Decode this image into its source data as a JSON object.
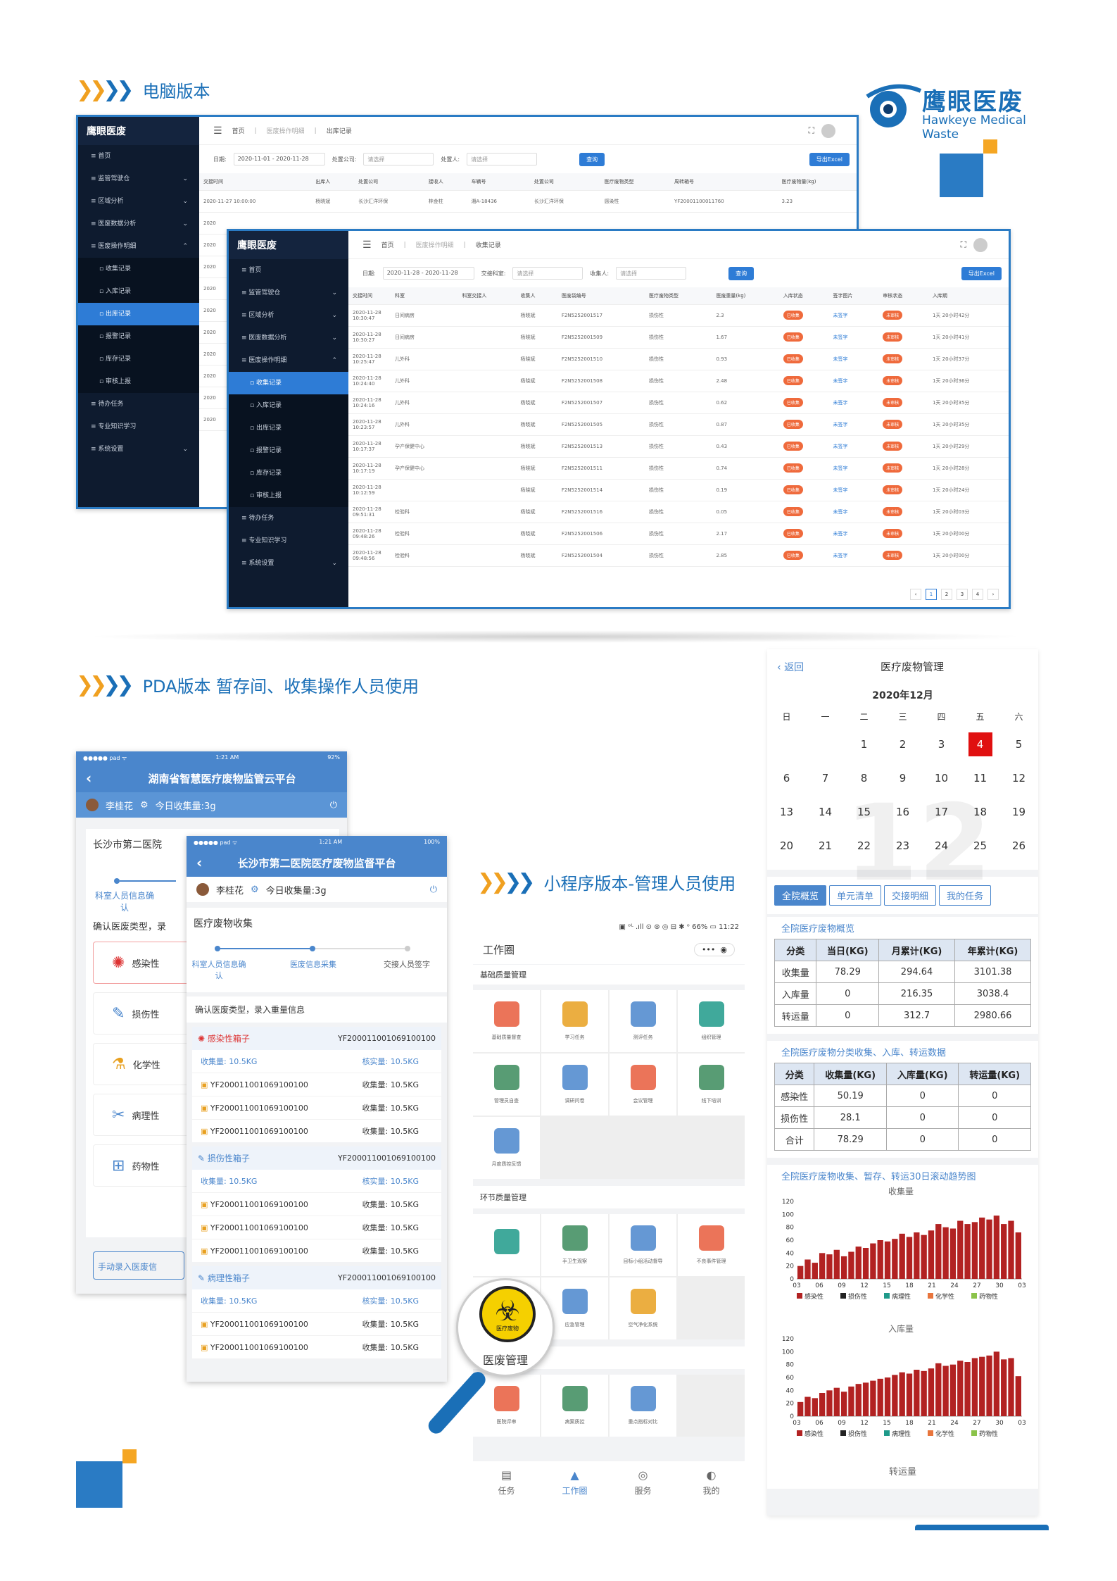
{
  "brand": {
    "name_cn": "鹰眼医废",
    "name_en": "Hawkeye Medical Waste"
  },
  "sections": {
    "pc": "电脑版本",
    "pda": "PDA版本 暂存间、收集操作人员使用",
    "mini": "小程序版本-管理人员使用"
  },
  "pc1": {
    "logo": "鹰眼医废",
    "logo_sub": "Hawkeye Medical Waste",
    "menu": [
      "首页",
      "监管驾驶仓",
      "区域分析",
      "医废数据分析",
      "医废操作明细",
      "收集记录",
      "入库记录",
      "出库记录",
      "报警记录",
      "库存记录",
      "审核上报",
      "待办任务",
      "专业知识学习",
      "系统设置"
    ],
    "crumbs": [
      "首页",
      "医废操作明细",
      "出库记录"
    ],
    "filters": {
      "date_label": "日期:",
      "date_value": "2020-11-01 - 2020-11-28",
      "company_label": "处置公司:",
      "company_ph": "请选择",
      "handler_label": "处置人:",
      "handler_ph": "请选择",
      "query": "查询",
      "export": "导出Excel"
    },
    "columns": [
      "交接时间",
      "出库人",
      "处置公司",
      "接收人",
      "车辆号",
      "处置公司",
      "医疗废物类型",
      "周转箱号",
      "医疗废物量(kg)"
    ],
    "row": [
      "2020-11-27 10:00:00",
      "杨晓斌",
      "长沙汇洋环保",
      "林金柱",
      "湘A-18436",
      "长沙汇洋环保",
      "感染性",
      "YF20001100011760",
      "3.23"
    ],
    "stub_rows": [
      "2020",
      "2020",
      "2020",
      "2020",
      "2020",
      "2020",
      "2020",
      "2020",
      "2020",
      "2020"
    ]
  },
  "pc2": {
    "logo": "鹰眼医废",
    "logo_sub": "Hawkeye Medical Waste",
    "menu": [
      "首页",
      "监管驾驶仓",
      "区域分析",
      "医废数据分析",
      "医废操作明细",
      "收集记录",
      "入库记录",
      "出库记录",
      "报警记录",
      "库存记录",
      "审核上报",
      "待办任务",
      "专业知识学习",
      "系统设置"
    ],
    "crumbs": [
      "首页",
      "医废操作明细",
      "收集记录"
    ],
    "filters": {
      "date_label": "日期:",
      "date_value": "2020-11-28 - 2020-11-28",
      "dept_label": "交接科室:",
      "dept_ph": "请选择",
      "collector_label": "收集人:",
      "collector_ph": "请选择",
      "query": "查询",
      "export": "导出Excel"
    },
    "columns": [
      "交接时间",
      "科室",
      "科室交接人",
      "收集人",
      "医废袋编号",
      "医疗废物类型",
      "医废重量(kg)",
      "入库状态",
      "签字图片",
      "审核状态",
      "入库期"
    ],
    "rows": [
      [
        "2020-11-28 10:30:47",
        "日间病房",
        "",
        "杨晓斌",
        "F2N5252001517",
        "损伤性",
        "2.3",
        "已收集",
        "未签字",
        "未审核",
        "1天 20小时42分"
      ],
      [
        "2020-11-28 10:30:27",
        "日间病房",
        "",
        "杨晓斌",
        "F2N5252001509",
        "损伤性",
        "1.67",
        "已收集",
        "未签字",
        "未审核",
        "1天 20小时41分"
      ],
      [
        "2020-11-28 10:25:47",
        "儿外科",
        "",
        "杨晓斌",
        "F2N5252001510",
        "损伤性",
        "0.93",
        "已收集",
        "未签字",
        "未审核",
        "1天 20小时37分"
      ],
      [
        "2020-11-28 10:24:40",
        "儿外科",
        "",
        "杨晓斌",
        "F2N5252001508",
        "损伤性",
        "2.48",
        "已收集",
        "未签字",
        "未审核",
        "1天 20小时36分"
      ],
      [
        "2020-11-28 10:24:16",
        "儿外科",
        "",
        "杨晓斌",
        "F2N5252001507",
        "损伤性",
        "0.62",
        "已收集",
        "未签字",
        "未审核",
        "1天 20小时35分"
      ],
      [
        "2020-11-28 10:23:57",
        "儿外科",
        "",
        "杨晓斌",
        "F2N5252001505",
        "损伤性",
        "0.87",
        "已收集",
        "未签字",
        "未审核",
        "1天 20小时35分"
      ],
      [
        "2020-11-28 10:17:37",
        "孕产保健中心",
        "",
        "杨晓斌",
        "F2N5252001513",
        "损伤性",
        "0.43",
        "已收集",
        "未签字",
        "未审核",
        "1天 20小时29分"
      ],
      [
        "2020-11-28 10:17:19",
        "孕产保健中心",
        "",
        "杨晓斌",
        "F2N5252001511",
        "损伤性",
        "0.74",
        "已收集",
        "未签字",
        "未审核",
        "1天 20小时28分"
      ],
      [
        "2020-11-28 10:12:59",
        "",
        "",
        "杨晓斌",
        "F2N5252001514",
        "损伤性",
        "0.19",
        "已收集",
        "未签字",
        "未审核",
        "1天 20小时24分"
      ],
      [
        "2020-11-28 09:51:31",
        "检验科",
        "",
        "杨晓斌",
        "F2N5252001516",
        "损伤性",
        "0.05",
        "已收集",
        "未签字",
        "未审核",
        "1天 20小时03分"
      ],
      [
        "2020-11-28 09:48:26",
        "检验科",
        "",
        "杨晓斌",
        "F2N5252001506",
        "损伤性",
        "2.17",
        "已收集",
        "未签字",
        "未审核",
        "1天 20小时00分"
      ],
      [
        "2020-11-28 09:48:56",
        "检验科",
        "",
        "杨晓斌",
        "F2N5252001504",
        "损伤性",
        "2.85",
        "已收集",
        "未签字",
        "未审核",
        "1天 20小时00分"
      ]
    ],
    "pages": [
      "‹",
      "1",
      "2",
      "3",
      "4",
      "›"
    ]
  },
  "pda1": {
    "status_left": "●●●●● pad ᯤ",
    "status_mid": "1:21 AM",
    "status_right": "92%",
    "title": "湖南省智慧医疗废物监管云平台",
    "user": "李桂花",
    "today": "今日收集量:3g",
    "hospital": "长沙市第二医院",
    "step1": "科室人员信息确认",
    "confirm": "确认医废类型，录",
    "types": [
      "感染性",
      "损伤性",
      "化学性",
      "病理性",
      "药物性"
    ],
    "manual": "手动录入医废信"
  },
  "pda2": {
    "status_left": "●●●●● pad ᯤ",
    "status_mid": "1:21 AM",
    "status_right": "100%",
    "title": "长沙市第二医院医疗废物监督平台",
    "user": "李桂花",
    "today": "今日收集量:3g",
    "section": "医疗废物收集",
    "steps": [
      "科室人员信息确认",
      "医废信息采集",
      "交接人员签字"
    ],
    "confirm": "确认医废类型，录入重量信息",
    "boxes": [
      {
        "name": "感染性箱子",
        "code": "YF200011001069100100",
        "collect": "收集量: 10.5KG",
        "verify": "核实量: 10.5KG",
        "items": [
          {
            "code": "YF200011001069100100",
            "qty": "收集量: 10.5KG"
          },
          {
            "code": "YF200011001069100100",
            "qty": "收集量: 10.5KG"
          },
          {
            "code": "YF200011001069100100",
            "qty": "收集量: 10.5KG"
          }
        ]
      },
      {
        "name": "损伤性箱子",
        "code": "YF200011001069100100",
        "collect": "收集量: 10.5KG",
        "verify": "核实量: 10.5KG",
        "items": [
          {
            "code": "YF200011001069100100",
            "qty": "收集量: 10.5KG"
          },
          {
            "code": "YF200011001069100100",
            "qty": "收集量: 10.5KG"
          },
          {
            "code": "YF200011001069100100",
            "qty": "收集量: 10.5KG"
          }
        ]
      },
      {
        "name": "病理性箱子",
        "code": "YF200011001069100100",
        "collect": "收集量: 10.5KG",
        "verify": "核实量: 10.5KG",
        "items": [
          {
            "code": "YF200011001069100100",
            "qty": "收集量: 10.5KG"
          },
          {
            "code": "YF200011001069100100",
            "qty": "收集量: 10.5KG"
          }
        ]
      }
    ]
  },
  "mini": {
    "status": "▣ ᵒᴸ .ıll ⊙ ⊛  ◎ ⊟ ✱ ᵒ 66% ▭ 11:22",
    "title": "工作圈",
    "more": "•••",
    "group1": "基础质量管理",
    "g1": [
      "基础质量督查",
      "学习任务",
      "测评任务",
      "组织管理",
      "管理员自查",
      "调研问卷",
      "会议管理",
      "线下培训",
      "月度质控反馈"
    ],
    "group2": "环节质量管理",
    "g2": [
      "",
      "手卫生观察",
      "目标小组活动督导",
      "不良事件管理",
      "",
      "应急管理",
      "空气净化系统"
    ],
    "magnifier": "医废管理",
    "badge": "医疗废物",
    "group3": "终末质量管理",
    "g3": [
      "医院评审",
      "病案质控",
      "重点指标对比"
    ],
    "tabbar": [
      "任务",
      "工作圈",
      "服务",
      "我的"
    ]
  },
  "right": {
    "back": "返回",
    "title": "医疗废物管理",
    "month": "2020年12月",
    "weekdays": [
      "日",
      "一",
      "二",
      "三",
      "四",
      "五",
      "六"
    ],
    "days": [
      "",
      "",
      "1",
      "2",
      "3",
      "4",
      "5",
      "6",
      "7",
      "8",
      "9",
      "10",
      "11",
      "12",
      "13",
      "14",
      "15",
      "16",
      "17",
      "18",
      "19",
      "20",
      "21",
      "22",
      "23",
      "24",
      "25",
      "26"
    ],
    "today": "4",
    "watermark": "12",
    "tabs": [
      "全院概览",
      "单元清单",
      "交接明细",
      "我的任务"
    ],
    "t1_title": "全院医疗废物概览",
    "t1_head": [
      "分类",
      "当日(KG)",
      "月累计(KG)",
      "年累计(KG)"
    ],
    "t1_rows": [
      [
        "收集量",
        "78.29",
        "294.64",
        "3101.38"
      ],
      [
        "入库量",
        "0",
        "216.35",
        "3038.4"
      ],
      [
        "转运量",
        "0",
        "312.7",
        "2980.66"
      ]
    ],
    "t2_title": "全院医疗废物分类收集、入库、转运数据",
    "t2_head": [
      "分类",
      "收集量(KG)",
      "入库量(KG)",
      "转运量(KG)"
    ],
    "t2_rows": [
      [
        "感染性",
        "50.19",
        "0",
        "0"
      ],
      [
        "损伤性",
        "28.1",
        "0",
        "0"
      ],
      [
        "合计",
        "78.29",
        "0",
        "0"
      ]
    ],
    "chart_title": "全院医疗废物收集、暂存、转运30日滚动趋势图",
    "legend": [
      "感染性",
      "损伤性",
      "病理性",
      "化学性",
      "药物性"
    ],
    "chart_footer": "转运量"
  },
  "chart_data": [
    {
      "type": "bar",
      "title": "收集量",
      "x": [
        1,
        2,
        3,
        4,
        5,
        6,
        7,
        8,
        9,
        10,
        11,
        12,
        13,
        14,
        15,
        16,
        17,
        18,
        19,
        20,
        21,
        22,
        23,
        24,
        25,
        26,
        27,
        28,
        29,
        30,
        31
      ],
      "xticks": [
        "03",
        "06",
        "09",
        "12",
        "15",
        "18",
        "21",
        "24",
        "27",
        "30",
        "03"
      ],
      "yticks": [
        "0",
        "20",
        "40",
        "60",
        "80",
        "100",
        "120"
      ],
      "ylim": [
        0,
        120
      ],
      "series": [
        {
          "name": "感染性",
          "color": "#b22222",
          "values": [
            20,
            30,
            25,
            40,
            38,
            45,
            35,
            42,
            50,
            48,
            55,
            60,
            58,
            62,
            70,
            65,
            72,
            68,
            75,
            85,
            80,
            78,
            90,
            85,
            88,
            95,
            92,
            98,
            85,
            90,
            72
          ]
        },
        {
          "name": "损伤性",
          "color": "#222222",
          "values": [
            0,
            0,
            0,
            0,
            0,
            0,
            0,
            0,
            0,
            0,
            0,
            0,
            0,
            0,
            0,
            0,
            0,
            0,
            0,
            0,
            0,
            0,
            0,
            0,
            0,
            0,
            0,
            0,
            0,
            0,
            0
          ]
        }
      ],
      "legend": [
        "感染性",
        "损伤性",
        "病理性",
        "化学性",
        "药物性"
      ]
    },
    {
      "type": "bar",
      "title": "入库量",
      "x": [
        1,
        2,
        3,
        4,
        5,
        6,
        7,
        8,
        9,
        10,
        11,
        12,
        13,
        14,
        15,
        16,
        17,
        18,
        19,
        20,
        21,
        22,
        23,
        24,
        25,
        26,
        27,
        28,
        29,
        30,
        31
      ],
      "xticks": [
        "03",
        "06",
        "09",
        "12",
        "15",
        "18",
        "21",
        "24",
        "27",
        "30",
        "03"
      ],
      "yticks": [
        "0",
        "20",
        "40",
        "60",
        "80",
        "100",
        "120"
      ],
      "ylim": [
        0,
        120
      ],
      "series": [
        {
          "name": "感染性",
          "color": "#b22222",
          "values": [
            22,
            30,
            28,
            36,
            40,
            44,
            38,
            46,
            50,
            52,
            55,
            58,
            60,
            64,
            68,
            66,
            72,
            70,
            74,
            82,
            78,
            80,
            86,
            84,
            90,
            92,
            94,
            100,
            88,
            90,
            62
          ]
        }
      ],
      "legend": [
        "感染性",
        "损伤性",
        "病理性",
        "化学性",
        "药物性"
      ]
    }
  ]
}
